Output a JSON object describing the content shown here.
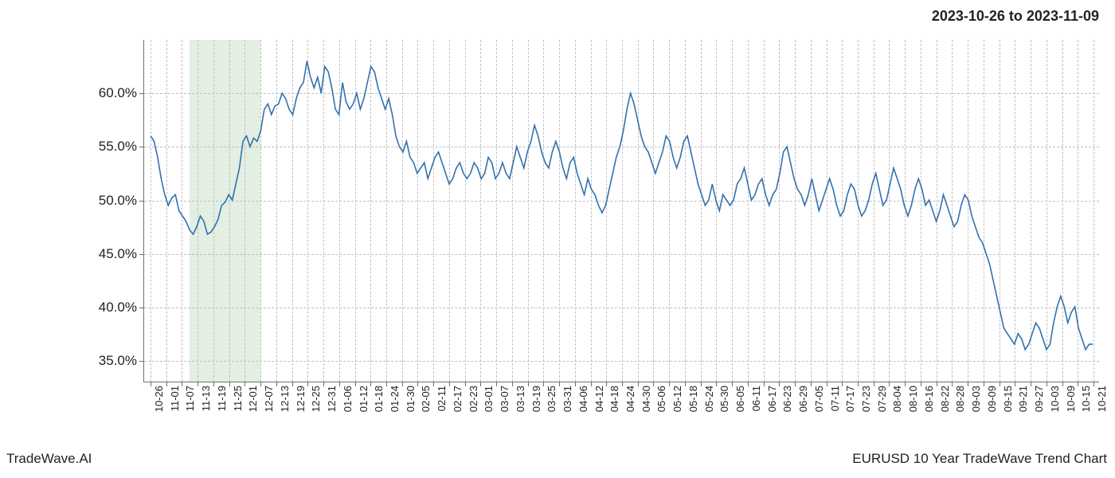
{
  "header": {
    "date_range": "2023-10-26 to 2023-11-09"
  },
  "footer": {
    "left": "TradeWave.AI",
    "right": "EURUSD 10 Year TradeWave Trend Chart"
  },
  "chart": {
    "type": "line",
    "background_color": "#ffffff",
    "line_color": "#3271ad",
    "line_width": 1.6,
    "grid_color": "#c0c0c0",
    "axis_color": "#6f6f6f",
    "text_color": "#222222",
    "highlight_band": {
      "color": "rgba(140,190,140,0.25)",
      "x_from_idx": 2.5,
      "x_to_idx": 7
    },
    "ylim": [
      33,
      65
    ],
    "yticks": [
      35,
      40,
      45,
      50,
      55,
      60
    ],
    "ytick_labels": [
      "35.0%",
      "40.0%",
      "45.0%",
      "50.0%",
      "55.0%",
      "60.0%"
    ],
    "label_fontsize_y": 17,
    "label_fontsize_x": 13,
    "x_labels": [
      "10-26",
      "11-01",
      "11-07",
      "11-13",
      "11-19",
      "11-25",
      "12-01",
      "12-07",
      "12-13",
      "12-19",
      "12-25",
      "12-31",
      "01-06",
      "01-12",
      "01-18",
      "01-24",
      "01-30",
      "02-05",
      "02-11",
      "02-17",
      "02-23",
      "03-01",
      "03-07",
      "03-13",
      "03-19",
      "03-25",
      "03-31",
      "04-06",
      "04-12",
      "04-18",
      "04-24",
      "04-30",
      "05-06",
      "05-12",
      "05-18",
      "05-24",
      "05-30",
      "06-05",
      "06-11",
      "06-17",
      "06-23",
      "06-29",
      "07-05",
      "07-11",
      "07-17",
      "07-23",
      "07-29",
      "08-04",
      "08-10",
      "08-16",
      "08-22",
      "08-28",
      "09-03",
      "09-09",
      "09-15",
      "09-21",
      "09-27",
      "10-03",
      "10-09",
      "10-15",
      "10-21"
    ],
    "x_tick_step_labels": 1,
    "values": [
      56.0,
      55.5,
      54.0,
      52.0,
      50.5,
      49.5,
      50.2,
      50.5,
      49.0,
      48.5,
      48.0,
      47.2,
      46.8,
      47.5,
      48.5,
      48.0,
      46.8,
      47.0,
      47.5,
      48.2,
      49.5,
      49.8,
      50.5,
      50.0,
      51.5,
      53.0,
      55.5,
      56.0,
      55.0,
      55.8,
      55.5,
      56.5,
      58.5,
      59.0,
      58.0,
      58.8,
      59.0,
      60.0,
      59.5,
      58.5,
      58.0,
      59.5,
      60.5,
      61.0,
      63.0,
      61.5,
      60.5,
      61.5,
      60.0,
      62.5,
      62.0,
      60.5,
      58.5,
      58.0,
      61.0,
      59.2,
      58.5,
      59.0,
      60.0,
      58.5,
      59.5,
      61.0,
      62.5,
      62.0,
      60.5,
      59.5,
      58.5,
      59.5,
      58.0,
      56.0,
      55.0,
      54.5,
      55.5,
      54.0,
      53.5,
      52.5,
      53.0,
      53.5,
      52.0,
      53.0,
      54.0,
      54.5,
      53.5,
      52.5,
      51.5,
      52.0,
      53.0,
      53.5,
      52.5,
      52.0,
      52.5,
      53.5,
      53.0,
      52.0,
      52.5,
      54.0,
      53.5,
      52.0,
      52.5,
      53.5,
      52.5,
      52.0,
      53.5,
      55.0,
      54.0,
      53.0,
      54.5,
      55.5,
      57.0,
      56.0,
      54.5,
      53.5,
      53.0,
      54.5,
      55.5,
      54.5,
      53.0,
      52.0,
      53.5,
      54.0,
      52.5,
      51.5,
      50.5,
      52.0,
      51.0,
      50.5,
      49.5,
      48.8,
      49.5,
      51.0,
      52.5,
      54.0,
      55.0,
      56.5,
      58.5,
      60.0,
      59.0,
      57.5,
      56.0,
      55.0,
      54.5,
      53.5,
      52.5,
      53.5,
      54.5,
      56.0,
      55.5,
      54.0,
      53.0,
      54.0,
      55.5,
      56.0,
      54.5,
      53.0,
      51.5,
      50.5,
      49.5,
      50.0,
      51.5,
      50.0,
      49.0,
      50.5,
      50.0,
      49.5,
      50.0,
      51.5,
      52.0,
      53.0,
      51.5,
      50.0,
      50.5,
      51.5,
      52.0,
      50.5,
      49.5,
      50.5,
      51.0,
      52.5,
      54.5,
      55.0,
      53.5,
      52.0,
      51.0,
      50.5,
      49.5,
      50.5,
      52.0,
      50.5,
      49.0,
      50.0,
      51.0,
      52.0,
      51.0,
      49.5,
      48.5,
      49.0,
      50.5,
      51.5,
      51.0,
      49.5,
      48.5,
      49.0,
      50.0,
      51.5,
      52.5,
      51.0,
      49.5,
      50.0,
      51.5,
      53.0,
      52.0,
      51.0,
      49.5,
      48.5,
      49.5,
      51.0,
      52.0,
      51.0,
      49.5,
      50.0,
      49.0,
      48.0,
      49.0,
      50.5,
      49.5,
      48.5,
      47.5,
      48.0,
      49.5,
      50.5,
      50.0,
      48.5,
      47.5,
      46.5,
      46.0,
      45.0,
      44.0,
      42.5,
      41.0,
      39.5,
      38.0,
      37.5,
      37.0,
      36.5,
      37.5,
      37.0,
      36.0,
      36.5,
      37.5,
      38.5,
      38.0,
      37.0,
      36.0,
      36.5,
      38.5,
      40.0,
      41.0,
      40.0,
      38.5,
      39.5,
      40.0,
      38.0,
      37.0,
      36.0,
      36.5,
      36.5
    ]
  }
}
